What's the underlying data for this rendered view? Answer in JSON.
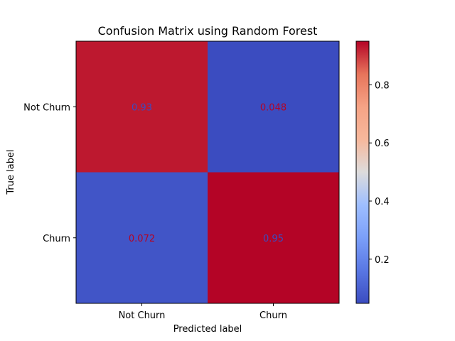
{
  "chart_data": {
    "type": "heatmap",
    "title": "Confusion Matrix using Random Forest",
    "xlabel": "Predicted label",
    "ylabel": "True label",
    "x_categories": [
      "Not Churn",
      "Churn"
    ],
    "y_categories": [
      "Not Churn",
      "Churn"
    ],
    "values": [
      [
        0.93,
        0.048
      ],
      [
        0.072,
        0.95
      ]
    ],
    "value_labels": [
      [
        "0.93",
        "0.048"
      ],
      [
        "0.072",
        "0.95"
      ]
    ],
    "colormap": "coolwarm",
    "colorbar": {
      "range": [
        0.048,
        0.95
      ],
      "ticks": [
        0.2,
        0.4,
        0.6,
        0.8
      ],
      "tick_labels": [
        "0.2",
        "0.4",
        "0.6",
        "0.8"
      ]
    },
    "cell_text_colors": [
      [
        "#3b4cc0",
        "#b40426"
      ],
      [
        "#b40426",
        "#3b4cc0"
      ]
    ],
    "grid": false
  }
}
